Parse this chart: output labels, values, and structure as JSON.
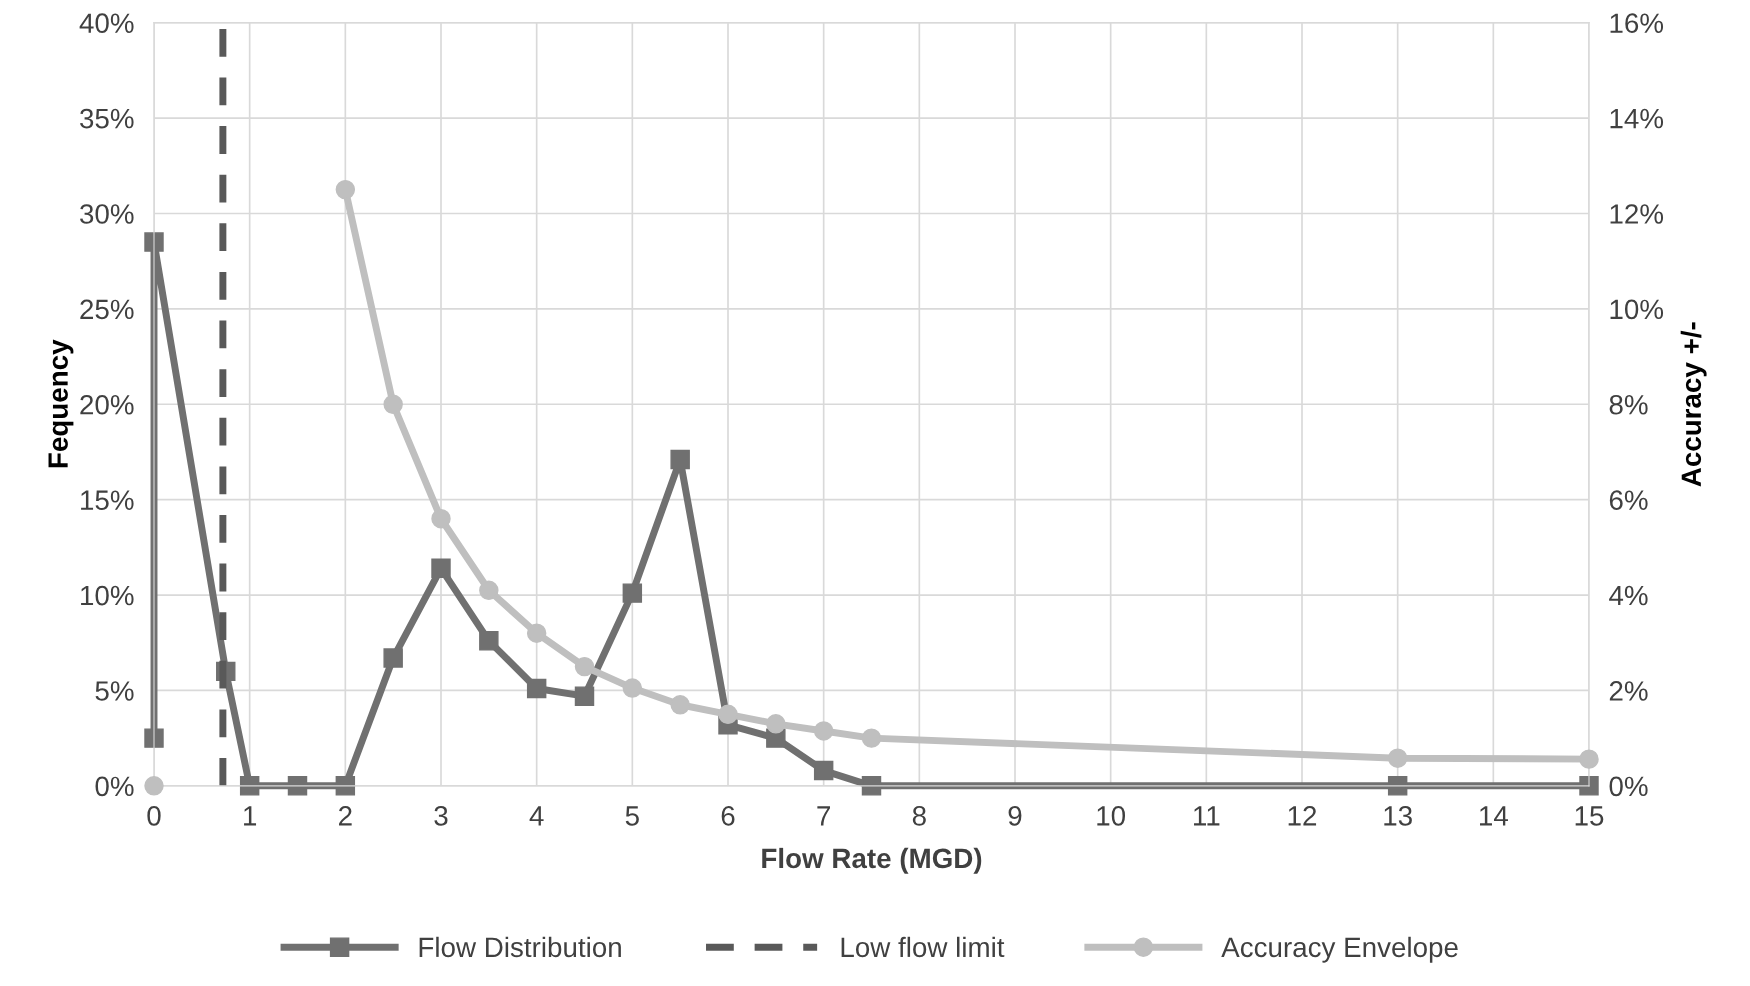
{
  "chart_data": {
    "type": "line",
    "xlabel": "Flow Rate (MGD)",
    "ylabel": "Fequency",
    "y2label": "Accuracy +/-",
    "xlim": [
      0,
      15
    ],
    "xticks": [
      0,
      1,
      2,
      3,
      4,
      5,
      6,
      7,
      8,
      9,
      10,
      11,
      12,
      13,
      14,
      15
    ],
    "ylim": [
      0,
      40
    ],
    "yticks": [
      {
        "value": 0,
        "label": "0%"
      },
      {
        "value": 5,
        "label": "5%"
      },
      {
        "value": 10,
        "label": "10%"
      },
      {
        "value": 15,
        "label": "15%"
      },
      {
        "value": 20,
        "label": "20%"
      },
      {
        "value": 25,
        "label": "25%"
      },
      {
        "value": 30,
        "label": "30%"
      },
      {
        "value": 35,
        "label": "35%"
      },
      {
        "value": 40,
        "label": "40%"
      }
    ],
    "y2lim": [
      0,
      16
    ],
    "y2ticks": [
      {
        "value": 0,
        "label": "0%"
      },
      {
        "value": 2,
        "label": "2%"
      },
      {
        "value": 4,
        "label": "4%"
      },
      {
        "value": 6,
        "label": "6%"
      },
      {
        "value": 8,
        "label": "8%"
      },
      {
        "value": 10,
        "label": "10%"
      },
      {
        "value": 12,
        "label": "12%"
      },
      {
        "value": 14,
        "label": "14%"
      },
      {
        "value": 16,
        "label": "16%"
      }
    ],
    "grid": true,
    "legend": "bottom",
    "series": [
      {
        "name": "Flow Distribution",
        "color": "#707070",
        "marker": "square",
        "line_style": "solid",
        "x": [
          0,
          0,
          0.75,
          1,
          1.5,
          2,
          2.5,
          3,
          3.5,
          4,
          4.5,
          5,
          5.5,
          6,
          6.5,
          7,
          7.5,
          13,
          15
        ],
        "values": [
          2.5,
          28.5,
          6,
          0,
          0,
          0,
          6.7,
          11.4,
          7.6,
          5.1,
          4.7,
          10.1,
          17.1,
          3.2,
          2.5,
          0.8,
          0,
          0,
          0
        ]
      },
      {
        "name": "Low flow limit",
        "color": "#595959",
        "marker": "none",
        "line_style": "dashed",
        "x": [
          0.72,
          0.72
        ],
        "values": [
          0,
          40
        ]
      },
      {
        "name": "Accuracy Envelope",
        "color": "#bfbfbf",
        "marker": "circle",
        "line_style": "solid",
        "axis": "y2",
        "x": [
          0,
          1,
          2,
          2.5,
          3,
          3.5,
          4,
          4.5,
          5,
          5.5,
          6,
          6.5,
          7,
          7.5,
          13,
          15
        ],
        "values": [
          0,
          null,
          12.5,
          8,
          5.6,
          4.1,
          3.2,
          2.5,
          2.05,
          1.7,
          1.5,
          1.3,
          1.15,
          1.0,
          0.58,
          0.56
        ]
      }
    ]
  }
}
